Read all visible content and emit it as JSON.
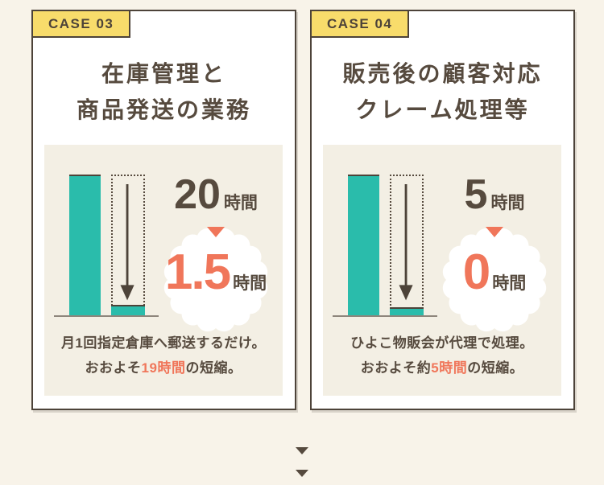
{
  "colors": {
    "page_background": "#f8f3e9",
    "card_background": "#ffffff",
    "card_border": "#4d4339",
    "badge_yellow": "#f8dc6b",
    "text_dark": "#564a3e",
    "bar_teal": "#2abcab",
    "accent_orange": "#f0765a",
    "panel_beige": "#f3efe4"
  },
  "icons": {
    "reduction_arrow": "down-arrow-icon",
    "before_after_separator": "down-triangle-icon",
    "scroll_hint": "down-triangle-icon",
    "after_badge_shape": "starburst-seal"
  },
  "cards": [
    {
      "badge": "CASE 03",
      "title_lines": [
        "在庫管理と",
        "商品発送の業務"
      ],
      "before": {
        "value": "20",
        "unit": "時間"
      },
      "after": {
        "value": "1.5",
        "unit": "時間"
      },
      "description_lines": [
        {
          "pre": "月1回指定倉庫へ郵送するだけ。",
          "highlight": "",
          "post": ""
        },
        {
          "pre": "おおよそ",
          "highlight": "19時間",
          "post": "の短縮。"
        }
      ]
    },
    {
      "badge": "CASE 04",
      "title_lines": [
        "販売後の顧客対応",
        "クレーム処理等"
      ],
      "before": {
        "value": "5",
        "unit": "時間"
      },
      "after": {
        "value": "0",
        "unit": "時間"
      },
      "description_lines": [
        {
          "pre": "ひよこ物販会が代理で処理。",
          "highlight": "",
          "post": ""
        },
        {
          "pre": "おおよそ約",
          "highlight": "5時間",
          "post": "の短縮。"
        }
      ]
    }
  ],
  "chart_data": [
    {
      "type": "bar",
      "title": "在庫管理と商品発送の業務",
      "categories": [
        "before",
        "after"
      ],
      "values": [
        20,
        1.5
      ],
      "unit": "時間",
      "annotation": "月1回指定倉庫へ郵送するだけ。おおよそ19時間の短縮。",
      "bar_color": "#2abcab",
      "highlight_color": "#f0765a"
    },
    {
      "type": "bar",
      "title": "販売後の顧客対応 クレーム処理等",
      "categories": [
        "before",
        "after"
      ],
      "values": [
        5,
        0
      ],
      "unit": "時間",
      "annotation": "ひよこ物販会が代理で処理。おおよそ約5時間の短縮。",
      "bar_color": "#2abcab",
      "highlight_color": "#f0765a"
    }
  ]
}
